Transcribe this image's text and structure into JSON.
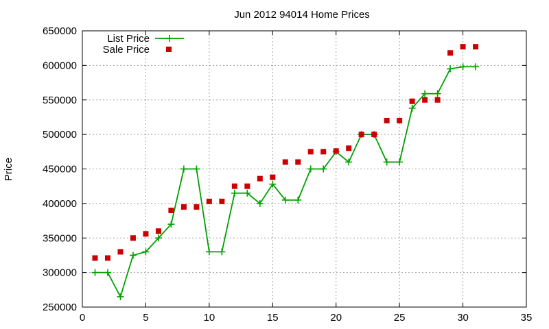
{
  "chart_data": {
    "type": "line",
    "title": "Jun 2012 94014 Home Prices",
    "xlabel": "",
    "ylabel": "Price",
    "xlim": [
      0,
      35
    ],
    "ylim": [
      250000,
      650000
    ],
    "x_ticks": [
      0,
      5,
      10,
      15,
      20,
      25,
      30,
      35
    ],
    "y_ticks": [
      250000,
      300000,
      350000,
      400000,
      450000,
      500000,
      550000,
      600000,
      650000
    ],
    "x_tick_labels": [
      "0",
      "5",
      "10",
      "15",
      "20",
      "25",
      "30",
      "35"
    ],
    "y_tick_labels": [
      "250000",
      "300000",
      "350000",
      "400000",
      "450000",
      "500000",
      "550000",
      "600000",
      "650000"
    ],
    "grid": true,
    "legend_position": "top-left",
    "series": [
      {
        "name": "List Price",
        "style": "line+plus",
        "color": "#00a000",
        "x": [
          1,
          2,
          3,
          4,
          5,
          6,
          7,
          8,
          9,
          10,
          11,
          12,
          13,
          14,
          15,
          16,
          17,
          18,
          19,
          20,
          21,
          22,
          23,
          24,
          25,
          26,
          27,
          28,
          29,
          30,
          31
        ],
        "values": [
          300000,
          300000,
          265000,
          325000,
          330000,
          350000,
          370000,
          450000,
          450000,
          330000,
          330000,
          415000,
          415000,
          400000,
          428000,
          405000,
          405000,
          450000,
          450000,
          475000,
          460000,
          500000,
          500000,
          460000,
          460000,
          538000,
          559000,
          559000,
          595000,
          598000,
          598000
        ]
      },
      {
        "name": "Sale Price",
        "style": "square",
        "color": "#cc0000",
        "x": [
          1,
          2,
          3,
          4,
          5,
          6,
          7,
          8,
          9,
          10,
          11,
          12,
          13,
          14,
          15,
          16,
          17,
          18,
          19,
          20,
          21,
          22,
          23,
          24,
          25,
          26,
          27,
          28,
          29,
          30,
          31
        ],
        "values": [
          321000,
          321000,
          330000,
          350000,
          356000,
          360000,
          390000,
          395000,
          395000,
          403000,
          403000,
          425000,
          425000,
          436000,
          438000,
          460000,
          460000,
          475000,
          475000,
          476000,
          480000,
          500000,
          500000,
          520000,
          520000,
          548000,
          550000,
          550000,
          618000,
          627000,
          627000
        ]
      }
    ]
  }
}
